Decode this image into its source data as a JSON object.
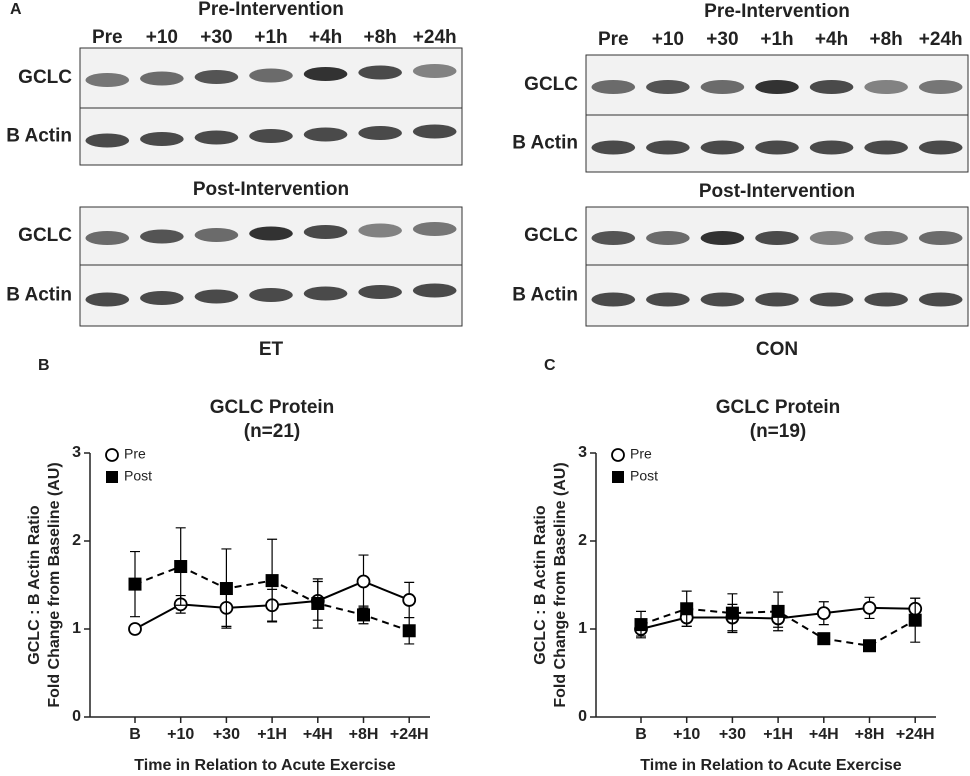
{
  "figure": {
    "panel_label": "A",
    "blots": [
      {
        "group": "ET",
        "sections": [
          {
            "title": "Pre-Intervention",
            "lanes": [
              "Pre",
              "+10",
              "+30",
              "+1h",
              "+4h",
              "+8h",
              "+24h"
            ],
            "rows": [
              "GCLC",
              "B Actin"
            ]
          },
          {
            "title": "Post-Intervention",
            "rows": [
              "GCLC",
              "B Actin"
            ]
          }
        ]
      },
      {
        "group": "CON",
        "sections": [
          {
            "title": "Pre-Intervention",
            "lanes": [
              "Pre",
              "+10",
              "+30",
              "+1h",
              "+4h",
              "+8h",
              "+24h"
            ],
            "rows": [
              "GCLC",
              "B Actin"
            ]
          },
          {
            "title": "Post-Intervention",
            "rows": [
              "GCLC",
              "B Actin"
            ]
          }
        ]
      }
    ]
  },
  "chart_data": [
    {
      "type": "line",
      "panel_label": "B",
      "title": "GCLC Protein",
      "subtitle": "(n=21)",
      "x_label": "Time in Relation to Acute Exercise",
      "y_label": [
        "GCLC : B Actin Ratio",
        "Fold Change from Baseline (AU)"
      ],
      "categories": [
        "B",
        "+10",
        "+30",
        "+1H",
        "+4H",
        "+8H",
        "+24H"
      ],
      "ylim": [
        0,
        3
      ],
      "yticks": [
        0,
        1,
        2,
        3
      ],
      "legend": "upper left",
      "series": [
        {
          "name": "Pre",
          "color": "#000000",
          "marker": "circle",
          "marker_fill": "#ffffff",
          "line_style": "solid",
          "values": [
            1.0,
            1.28,
            1.24,
            1.27,
            1.32,
            1.54,
            1.33
          ],
          "errors": [
            0,
            0.1,
            0.21,
            0.18,
            0.22,
            0.3,
            0.2
          ]
        },
        {
          "name": "Post",
          "color": "#000000",
          "marker": "square",
          "marker_fill": "#000000",
          "line_style": "dashed",
          "values": [
            1.51,
            1.71,
            1.46,
            1.55,
            1.29,
            1.16,
            0.98
          ],
          "errors": [
            0.37,
            0.44,
            0.45,
            0.47,
            0.28,
            0.1,
            0.15
          ]
        }
      ]
    },
    {
      "type": "line",
      "panel_label": "C",
      "title": "GCLC Protein",
      "subtitle": "(n=19)",
      "x_label": "Time in Relation to Acute Exercise",
      "y_label": [
        "GCLC : B Actin Ratio",
        "Fold Change from Baseline (AU)"
      ],
      "categories": [
        "B",
        "+10",
        "+30",
        "+1H",
        "+4H",
        "+8H",
        "+24H"
      ],
      "ylim": [
        0,
        3
      ],
      "yticks": [
        0,
        1,
        2,
        3
      ],
      "legend": "upper left",
      "series": [
        {
          "name": "Pre",
          "color": "#000000",
          "marker": "circle",
          "marker_fill": "#ffffff",
          "line_style": "solid",
          "values": [
            1.0,
            1.13,
            1.13,
            1.12,
            1.18,
            1.24,
            1.23
          ],
          "errors": [
            0.08,
            0.1,
            0.15,
            0.1,
            0.13,
            0.12,
            0.12
          ]
        },
        {
          "name": "Post",
          "color": "#000000",
          "marker": "square",
          "marker_fill": "#000000",
          "line_style": "dashed",
          "values": [
            1.05,
            1.23,
            1.18,
            1.2,
            0.89,
            0.81,
            1.1
          ],
          "errors": [
            0.15,
            0.2,
            0.22,
            0.22,
            0.06,
            0.02,
            0.25
          ]
        }
      ]
    }
  ]
}
